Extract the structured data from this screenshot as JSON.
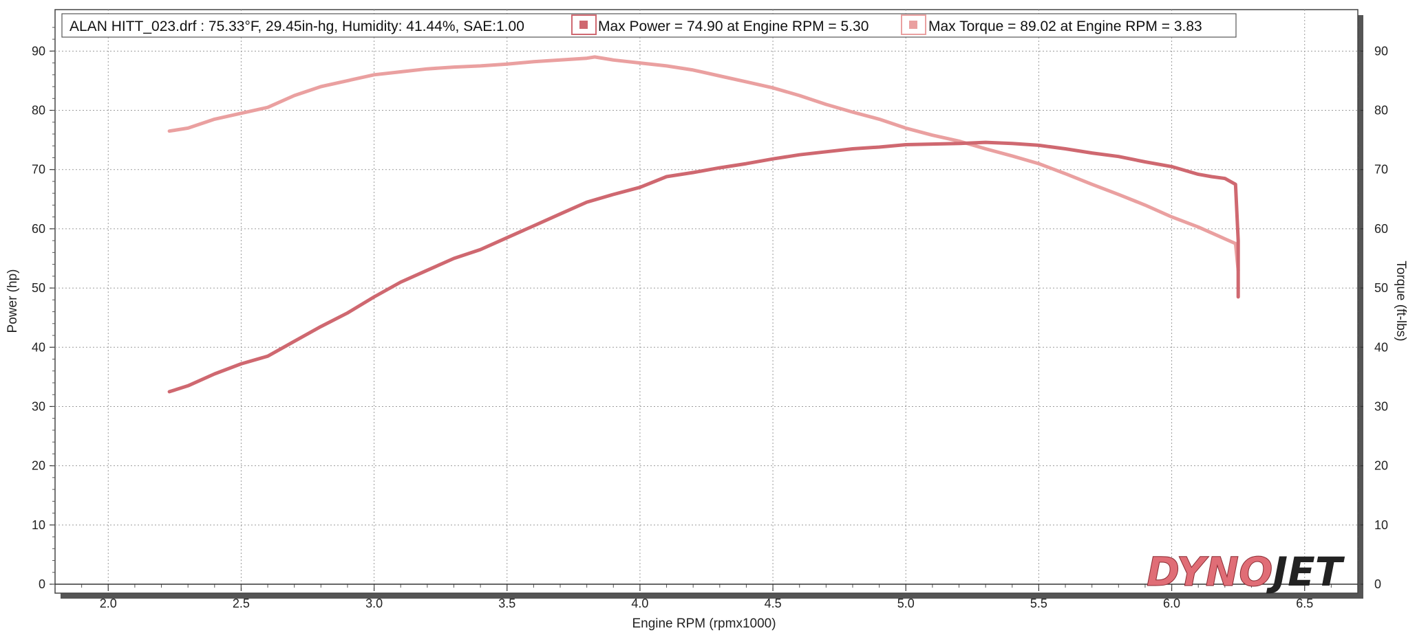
{
  "chart_data": {
    "type": "line",
    "title": "ALAN HITT_023.drf : 75.33°F, 29.45in-hg, Humidity: 41.44%, SAE:1.00",
    "xlabel": "Engine RPM (rpmx1000)",
    "ylabel": "Power (hp)",
    "y2label": "Torque (ft-lbs)",
    "xlim": [
      1.8,
      6.7
    ],
    "ylim": [
      0,
      97
    ],
    "y2lim": [
      0,
      97
    ],
    "x_ticks": [
      "2.0",
      "2.5",
      "3.0",
      "3.5",
      "4.0",
      "4.5",
      "5.0",
      "5.5",
      "6.0",
      "6.5"
    ],
    "y_ticks": [
      "0",
      "10",
      "20",
      "30",
      "40",
      "50",
      "60",
      "70",
      "80",
      "90"
    ],
    "y2_ticks": [
      "0",
      "10",
      "20",
      "30",
      "40",
      "50",
      "60",
      "70",
      "80",
      "90"
    ],
    "grid": true,
    "legend_position": "top",
    "logo": "DYNOJET",
    "series": [
      {
        "name": "Max Power = 74.90 at Engine RPM = 5.30",
        "axis": "left",
        "color": "#cf6870",
        "x": [
          2.23,
          2.3,
          2.4,
          2.5,
          2.6,
          2.7,
          2.8,
          2.9,
          3.0,
          3.1,
          3.2,
          3.3,
          3.4,
          3.5,
          3.6,
          3.7,
          3.8,
          3.9,
          4.0,
          4.1,
          4.2,
          4.3,
          4.4,
          4.5,
          4.6,
          4.7,
          4.8,
          4.9,
          5.0,
          5.1,
          5.2,
          5.3,
          5.4,
          5.5,
          5.6,
          5.7,
          5.8,
          5.9,
          6.0,
          6.1,
          6.15,
          6.2,
          6.24,
          6.25,
          6.25
        ],
        "values": [
          32.5,
          33.5,
          35.5,
          37.2,
          38.5,
          41.0,
          43.5,
          45.8,
          48.5,
          51.0,
          53.0,
          55.0,
          56.5,
          58.5,
          60.5,
          62.5,
          64.5,
          65.8,
          67.0,
          68.8,
          69.5,
          70.3,
          71.0,
          71.8,
          72.5,
          73.0,
          73.5,
          73.8,
          74.2,
          74.3,
          74.4,
          74.6,
          74.4,
          74.1,
          73.5,
          72.8,
          72.2,
          71.3,
          70.5,
          69.2,
          68.8,
          68.5,
          67.5,
          58.0,
          48.5
        ]
      },
      {
        "name": "Max Torque = 89.02 at Engine RPM = 3.83",
        "axis": "right",
        "color": "#eaa0a0",
        "x": [
          2.23,
          2.3,
          2.4,
          2.5,
          2.6,
          2.7,
          2.8,
          2.9,
          3.0,
          3.1,
          3.2,
          3.3,
          3.4,
          3.5,
          3.6,
          3.7,
          3.8,
          3.83,
          3.9,
          4.0,
          4.1,
          4.2,
          4.3,
          4.4,
          4.5,
          4.6,
          4.7,
          4.8,
          4.9,
          5.0,
          5.1,
          5.2,
          5.3,
          5.4,
          5.5,
          5.6,
          5.7,
          5.8,
          5.9,
          6.0,
          6.1,
          6.2,
          6.24,
          6.25
        ],
        "values": [
          76.5,
          77.0,
          78.5,
          79.5,
          80.5,
          82.5,
          84.0,
          85.0,
          86.0,
          86.5,
          87.0,
          87.3,
          87.5,
          87.8,
          88.2,
          88.5,
          88.8,
          89.0,
          88.5,
          88.0,
          87.5,
          86.8,
          85.8,
          84.8,
          83.8,
          82.5,
          81.0,
          79.7,
          78.5,
          77.0,
          75.8,
          74.8,
          73.5,
          72.3,
          71.0,
          69.3,
          67.5,
          65.8,
          64.0,
          62.0,
          60.3,
          58.3,
          57.5,
          53.0
        ]
      }
    ]
  }
}
